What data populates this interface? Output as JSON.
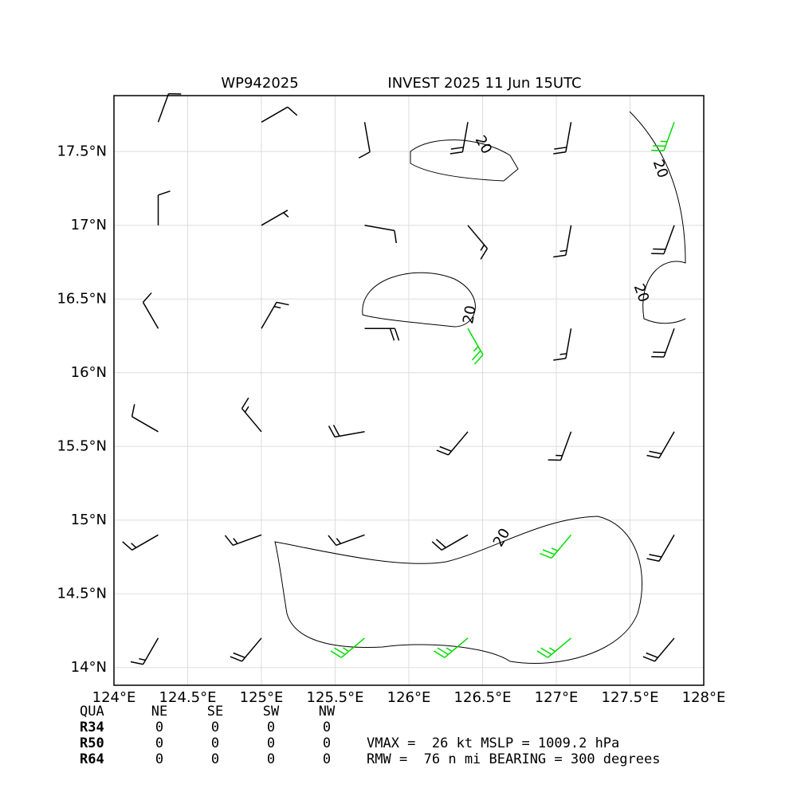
{
  "chart_data": {
    "type": "barbs",
    "title_left": "WP942025",
    "title_right": "INVEST 2025 11 Jun 15UTC",
    "xlim": [
      124,
      128
    ],
    "ylim": [
      13.88,
      17.88
    ],
    "xticks": [
      {
        "value": 124,
        "label": "124°E"
      },
      {
        "value": 124.5,
        "label": "124.5°E"
      },
      {
        "value": 125,
        "label": "125°E"
      },
      {
        "value": 125.5,
        "label": "125.5°E"
      },
      {
        "value": 126,
        "label": "126°E"
      },
      {
        "value": 126.5,
        "label": "126.5°E"
      },
      {
        "value": 127,
        "label": "127°E"
      },
      {
        "value": 127.5,
        "label": "127.5°E"
      },
      {
        "value": 128,
        "label": "128°E"
      }
    ],
    "yticks": [
      {
        "value": 14,
        "label": "14°N"
      },
      {
        "value": 14.5,
        "label": "14.5°N"
      },
      {
        "value": 15,
        "label": "15°N"
      },
      {
        "value": 15.5,
        "label": "15.5°N"
      },
      {
        "value": 16,
        "label": "16°N"
      },
      {
        "value": 16.5,
        "label": "16.5°N"
      },
      {
        "value": 17,
        "label": "17°N"
      },
      {
        "value": 17.5,
        "label": "17.5°N"
      }
    ],
    "grid": true,
    "lons": [
      124.3,
      125.0,
      125.7,
      126.4,
      127.1,
      127.8
    ],
    "lats": [
      17.7,
      17.0,
      16.3,
      15.6,
      14.9,
      14.2
    ],
    "speed": [
      [
        10,
        10,
        10,
        20,
        20,
        25
      ],
      [
        10,
        5,
        10,
        15,
        15,
        20
      ],
      [
        10,
        15,
        20,
        25,
        15,
        20
      ],
      [
        10,
        15,
        20,
        20,
        15,
        20
      ],
      [
        15,
        15,
        15,
        20,
        25,
        20
      ],
      [
        15,
        20,
        25,
        25,
        25,
        20
      ]
    ],
    "direction": [
      [
        20,
        60,
        170,
        190,
        190,
        200
      ],
      [
        0,
        60,
        100,
        140,
        190,
        200
      ],
      [
        330,
        30,
        90,
        150,
        190,
        200
      ],
      [
        300,
        320,
        260,
        220,
        200,
        210
      ],
      [
        240,
        250,
        250,
        240,
        220,
        210
      ],
      [
        210,
        220,
        230,
        230,
        230,
        220
      ]
    ],
    "color": "#000000",
    "strong_color": "#00dd00",
    "strong_min": 25,
    "contour_label": "20"
  },
  "table": {
    "header": [
      "QUA",
      "NE",
      "SE",
      "SW",
      "NW"
    ],
    "rows": [
      [
        "R34",
        "0",
        "0",
        "0",
        "0"
      ],
      [
        "R50",
        "0",
        "0",
        "0",
        "0"
      ],
      [
        "R64",
        "0",
        "0",
        "0",
        "0"
      ]
    ]
  },
  "summary": [
    "VMAX =  26 kt MSLP = 1009.2 hPa",
    "RMW =  76 n mi BEARING = 300 degrees"
  ]
}
